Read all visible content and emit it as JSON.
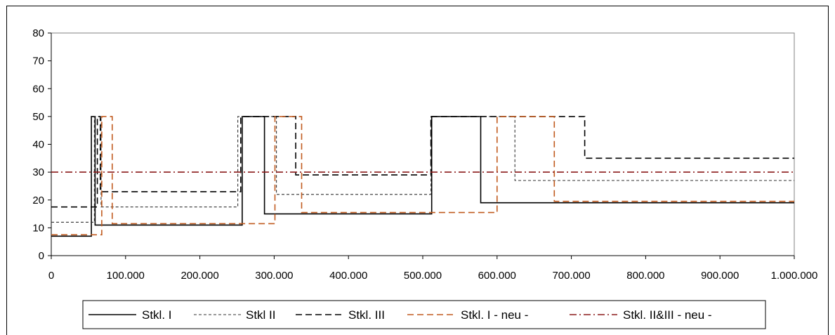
{
  "chart_data": {
    "type": "line",
    "title": "",
    "xlabel": "",
    "ylabel": "",
    "xlim": [
      0,
      1000000
    ],
    "ylim": [
      0,
      80
    ],
    "y_ticks": [
      "0",
      "10",
      "20",
      "30",
      "40",
      "50",
      "60",
      "70",
      "80"
    ],
    "x_ticks": [
      "0",
      "100.000",
      "200.000",
      "300.000",
      "400.000",
      "500.000",
      "600.000",
      "700.000",
      "800.000",
      "900.000",
      "1.000.000"
    ],
    "x_tick_values": [
      0,
      100000,
      200000,
      300000,
      400000,
      500000,
      600000,
      700000,
      800000,
      900000,
      1000000
    ],
    "y_tick_values": [
      0,
      10,
      20,
      30,
      40,
      50,
      60,
      70,
      80
    ],
    "grid": false,
    "legend_position": "bottom",
    "series": [
      {
        "name": "Stkl. I",
        "color": "#000000",
        "dash": "solid",
        "points": [
          [
            0,
            7
          ],
          [
            54000,
            7
          ],
          [
            54000,
            50
          ],
          [
            59000,
            50
          ],
          [
            59000,
            11
          ],
          [
            257000,
            11
          ],
          [
            257000,
            50
          ],
          [
            287000,
            50
          ],
          [
            287000,
            15
          ],
          [
            512000,
            15
          ],
          [
            512000,
            50
          ],
          [
            578000,
            50
          ],
          [
            578000,
            19
          ],
          [
            1000000,
            19
          ]
        ]
      },
      {
        "name": "Stkl II",
        "color": "#333333",
        "dash": "short-dash",
        "points": [
          [
            0,
            12
          ],
          [
            58000,
            12
          ],
          [
            58000,
            50
          ],
          [
            67000,
            50
          ],
          [
            67000,
            17.5
          ],
          [
            251000,
            17.5
          ],
          [
            251000,
            50
          ],
          [
            303000,
            50
          ],
          [
            303000,
            22
          ],
          [
            511000,
            22
          ],
          [
            511000,
            50
          ],
          [
            624000,
            50
          ],
          [
            624000,
            27
          ],
          [
            1000000,
            27
          ]
        ]
      },
      {
        "name": "Stkl. III",
        "color": "#000000",
        "dash": "long-dash",
        "points": [
          [
            0,
            17.5
          ],
          [
            62000,
            17.5
          ],
          [
            62000,
            50
          ],
          [
            66000,
            50
          ],
          [
            66000,
            23
          ],
          [
            255000,
            23
          ],
          [
            255000,
            50
          ],
          [
            329000,
            50
          ],
          [
            329000,
            29
          ],
          [
            511000,
            29
          ],
          [
            511000,
            50
          ],
          [
            718000,
            50
          ],
          [
            718000,
            35
          ],
          [
            1000000,
            35
          ]
        ]
      },
      {
        "name": "Stkl. I - neu -",
        "color": "#C05A1E",
        "dash": "long-dash",
        "points": [
          [
            0,
            7.5
          ],
          [
            68000,
            7.5
          ],
          [
            68000,
            50
          ],
          [
            82000,
            50
          ],
          [
            82000,
            11.5
          ],
          [
            301000,
            11.5
          ],
          [
            301000,
            50
          ],
          [
            337000,
            50
          ],
          [
            337000,
            15.5
          ],
          [
            600000,
            15.5
          ],
          [
            600000,
            50
          ],
          [
            677000,
            50
          ],
          [
            677000,
            19.5
          ],
          [
            1000000,
            19.5
          ]
        ]
      },
      {
        "name": "Stkl. II&III - neu -",
        "color": "#8B1A1A",
        "dash": "dash-dot",
        "points": [
          [
            0,
            30
          ],
          [
            1000000,
            30
          ]
        ]
      }
    ]
  }
}
